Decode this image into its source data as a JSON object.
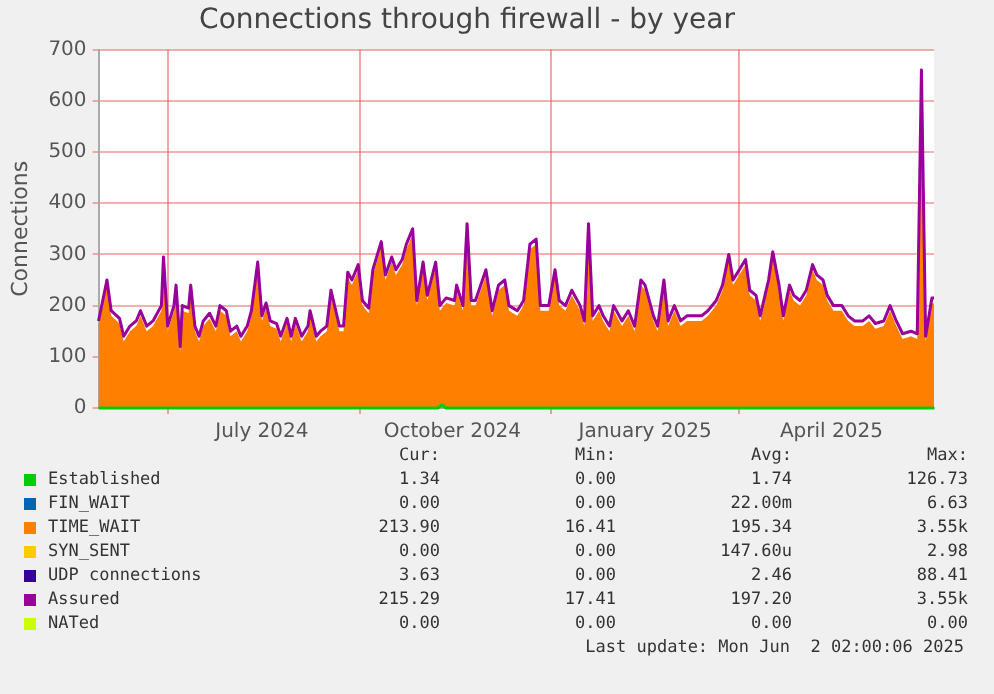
{
  "chart_data": {
    "type": "area",
    "title": "Connections through firewall - by year",
    "ylabel": "Connections",
    "x": [
      "2024-04-29",
      "2024-05-03",
      "2024-05-05",
      "2024-05-09",
      "2024-05-11",
      "2024-05-14",
      "2024-05-17",
      "2024-05-19",
      "2024-05-22",
      "2024-05-25",
      "2024-05-29",
      "2024-05-30",
      "2024-06-01",
      "2024-06-04",
      "2024-06-05",
      "2024-06-07",
      "2024-06-08",
      "2024-06-11",
      "2024-06-12",
      "2024-06-14",
      "2024-06-16",
      "2024-06-18",
      "2024-06-21",
      "2024-06-24",
      "2024-06-26",
      "2024-06-29",
      "2024-07-01",
      "2024-07-04",
      "2024-07-06",
      "2024-07-09",
      "2024-07-11",
      "2024-07-14",
      "2024-07-16",
      "2024-07-18",
      "2024-07-20",
      "2024-07-23",
      "2024-07-25",
      "2024-07-28",
      "2024-07-30",
      "2024-08-01",
      "2024-08-04",
      "2024-08-07",
      "2024-08-08",
      "2024-08-11",
      "2024-08-13",
      "2024-08-16",
      "2024-08-18",
      "2024-08-22",
      "2024-08-24",
      "2024-08-26",
      "2024-08-28",
      "2024-08-31",
      "2024-09-02",
      "2024-09-05",
      "2024-09-07",
      "2024-09-11",
      "2024-09-13",
      "2024-09-16",
      "2024-09-18",
      "2024-09-21",
      "2024-09-23",
      "2024-09-26",
      "2024-09-28",
      "2024-10-01",
      "2024-10-03",
      "2024-10-07",
      "2024-10-09",
      "2024-10-12",
      "2024-10-16",
      "2024-10-17",
      "2024-10-20",
      "2024-10-22",
      "2024-10-24",
      "2024-10-26",
      "2024-10-31",
      "2024-11-03",
      "2024-11-06",
      "2024-11-09",
      "2024-11-11",
      "2024-11-15",
      "2024-11-18",
      "2024-11-21",
      "2024-11-24",
      "2024-11-26",
      "2024-11-30",
      "2024-12-03",
      "2024-12-05",
      "2024-12-08",
      "2024-12-11",
      "2024-12-15",
      "2024-12-17",
      "2024-12-19",
      "2024-12-21",
      "2024-12-24",
      "2024-12-26",
      "2024-12-29",
      "2024-12-31",
      "2025-01-04",
      "2025-01-07",
      "2025-01-10",
      "2025-01-13",
      "2025-01-15",
      "2025-01-19",
      "2025-01-21",
      "2025-01-24",
      "2025-01-26",
      "2025-01-29",
      "2025-02-01",
      "2025-02-04",
      "2025-02-08",
      "2025-02-11",
      "2025-02-14",
      "2025-02-18",
      "2025-02-21",
      "2025-02-24",
      "2025-02-26",
      "2025-03-01",
      "2025-03-04",
      "2025-03-06",
      "2025-03-09",
      "2025-03-11",
      "2025-03-15",
      "2025-03-17",
      "2025-03-20",
      "2025-03-22",
      "2025-03-25",
      "2025-03-27",
      "2025-03-30",
      "2025-04-02",
      "2025-04-05",
      "2025-04-07",
      "2025-04-10",
      "2025-04-12",
      "2025-04-15",
      "2025-04-19",
      "2025-04-22",
      "2025-04-25",
      "2025-04-29",
      "2025-05-02",
      "2025-05-05",
      "2025-05-09",
      "2025-05-12",
      "2025-05-15",
      "2025-05-18",
      "2025-05-22",
      "2025-05-25",
      "2025-05-27",
      "2025-05-29",
      "2025-06-01",
      "2025-06-02"
    ],
    "series": [
      {
        "name": "Established",
        "type": "line",
        "color": "#00cc00",
        "x": [
          "2024-04-29",
          "2024-10-08",
          "2024-10-10",
          "2024-10-12",
          "2025-06-02"
        ],
        "values": [
          0,
          0,
          6,
          0,
          0
        ]
      },
      {
        "name": "FIN_WAIT",
        "type": "line",
        "color": "#0066b3",
        "values": [
          null,
          null,
          null,
          null,
          null,
          null,
          null,
          null,
          null,
          null,
          null,
          null,
          null,
          null,
          null,
          null,
          null,
          null,
          null,
          null,
          null,
          null,
          null,
          null,
          null,
          null,
          null,
          null,
          null,
          null,
          null,
          null,
          null,
          null,
          null,
          null,
          null,
          null,
          null,
          null,
          null,
          null,
          null,
          null,
          null,
          null,
          null,
          null,
          null,
          null,
          null,
          null,
          null,
          null,
          null,
          null,
          null,
          null,
          null,
          null,
          null,
          null,
          null,
          null,
          null,
          null,
          null,
          null,
          null,
          null,
          null,
          null,
          null,
          null,
          null,
          null,
          null,
          null,
          null,
          null,
          null,
          null,
          null,
          null,
          null,
          null,
          null,
          null,
          null,
          null,
          null,
          null,
          null,
          null,
          null,
          null,
          null,
          null,
          null,
          null,
          null,
          null,
          null,
          null,
          null,
          null,
          null,
          null,
          null,
          null,
          null,
          null,
          null,
          null,
          null,
          null,
          null,
          null,
          null,
          null,
          null,
          null,
          null,
          null,
          null,
          null,
          null,
          null,
          null,
          null,
          null,
          null,
          null,
          null,
          null,
          null,
          null,
          null,
          null,
          null,
          null,
          null,
          null,
          null,
          null,
          null,
          null,
          null,
          null,
          null
        ]
      },
      {
        "name": "TIME_WAIT",
        "color": "#ff8000",
        "values": [
          160,
          240,
          180,
          165,
          130,
          150,
          160,
          180,
          150,
          160,
          190,
          285,
          150,
          190,
          230,
          110,
          190,
          185,
          230,
          150,
          130,
          160,
          175,
          150,
          190,
          180,
          140,
          150,
          130,
          150,
          180,
          275,
          170,
          195,
          160,
          155,
          130,
          165,
          130,
          165,
          130,
          150,
          180,
          130,
          140,
          150,
          220,
          150,
          150,
          255,
          240,
          270,
          200,
          185,
          260,
          315,
          250,
          285,
          260,
          280,
          310,
          340,
          200,
          275,
          210,
          275,
          190,
          205,
          200,
          230,
          190,
          350,
          200,
          200,
          260,
          180,
          230,
          240,
          190,
          180,
          200,
          310,
          320,
          190,
          190,
          260,
          200,
          190,
          220,
          190,
          160,
          350,
          170,
          190,
          170,
          150,
          190,
          160,
          180,
          150,
          240,
          230,
          170,
          150,
          240,
          160,
          190,
          160,
          170,
          170,
          170,
          180,
          200,
          230,
          290,
          240,
          260,
          280,
          220,
          210,
          170,
          240,
          295,
          230,
          170,
          230,
          210,
          200,
          220,
          270,
          250,
          240,
          210,
          190,
          190,
          170,
          160,
          160,
          170,
          155,
          160,
          190,
          160,
          135,
          140,
          135,
          650,
          130,
          205,
          204
        ]
      },
      {
        "name": "SYN_SENT",
        "type": "line",
        "color": "#ffcc00",
        "values": [
          null,
          null,
          null,
          null,
          null,
          null,
          null,
          null,
          null,
          null,
          null,
          null,
          null,
          null,
          null,
          null,
          null,
          null,
          null,
          null,
          null,
          null,
          null,
          null,
          null,
          null,
          null,
          null,
          null,
          null,
          null,
          null,
          null,
          null,
          null,
          null,
          null,
          null,
          null,
          null,
          null,
          null,
          null,
          null,
          null,
          null,
          null,
          null,
          null,
          null,
          null,
          null,
          null,
          null,
          null,
          null,
          null,
          null,
          null,
          null,
          null,
          null,
          null,
          null,
          null,
          null,
          null,
          null,
          null,
          null,
          null,
          null,
          null,
          null,
          null,
          null,
          null,
          null,
          null,
          null,
          null,
          null,
          null,
          null,
          null,
          null,
          null,
          null,
          null,
          null,
          null,
          null,
          null,
          null,
          null,
          null,
          null,
          null,
          null,
          null,
          null,
          null,
          null,
          null,
          null,
          null,
          null,
          null,
          null,
          null,
          null,
          null,
          null,
          null,
          null,
          null,
          null,
          null,
          null,
          null,
          null,
          null,
          null,
          null,
          null,
          null,
          null,
          null,
          null,
          null,
          null,
          null,
          null,
          null,
          null,
          null,
          null,
          null,
          null,
          null,
          null,
          null,
          null,
          null,
          null,
          null,
          null,
          null,
          null,
          null
        ]
      },
      {
        "name": "UDP connections",
        "type": "line",
        "color": "#330099",
        "values": [
          null,
          null,
          null,
          null,
          null,
          null,
          null,
          null,
          null,
          null,
          null,
          null,
          null,
          null,
          null,
          null,
          null,
          null,
          null,
          null,
          null,
          null,
          null,
          null,
          null,
          null,
          null,
          null,
          null,
          null,
          null,
          null,
          null,
          null,
          null,
          null,
          null,
          null,
          null,
          null,
          null,
          null,
          null,
          null,
          null,
          null,
          null,
          null,
          null,
          null,
          null,
          null,
          null,
          null,
          null,
          null,
          null,
          null,
          null,
          null,
          null,
          null,
          null,
          null,
          null,
          null,
          null,
          null,
          null,
          null,
          null,
          null,
          null,
          null,
          null,
          null,
          null,
          null,
          null,
          null,
          null,
          null,
          null,
          null,
          null,
          null,
          null,
          null,
          null,
          null,
          null,
          null,
          null,
          null,
          null,
          null,
          null,
          null,
          null,
          null,
          null,
          null,
          null,
          null,
          null,
          null,
          null,
          null,
          null,
          null,
          null,
          null,
          null,
          null,
          null,
          null,
          null,
          null,
          null,
          null,
          null,
          null,
          null,
          null,
          null,
          null,
          null,
          null,
          null,
          null,
          null,
          null,
          null,
          null,
          null,
          null,
          null,
          null,
          null,
          null,
          null,
          null,
          null,
          null,
          null,
          null,
          null,
          null,
          null,
          null
        ]
      },
      {
        "name": "Assured",
        "type": "line",
        "color": "#990099",
        "values": [
          170,
          250,
          190,
          175,
          140,
          160,
          170,
          190,
          160,
          170,
          200,
          295,
          160,
          200,
          240,
          120,
          200,
          195,
          240,
          160,
          140,
          170,
          185,
          160,
          200,
          190,
          150,
          160,
          140,
          160,
          190,
          285,
          180,
          205,
          170,
          165,
          140,
          175,
          140,
          175,
          140,
          160,
          190,
          140,
          150,
          160,
          230,
          160,
          160,
          265,
          250,
          280,
          210,
          195,
          270,
          325,
          260,
          295,
          270,
          290,
          320,
          350,
          210,
          285,
          220,
          285,
          200,
          215,
          210,
          240,
          200,
          360,
          210,
          210,
          270,
          190,
          240,
          250,
          200,
          190,
          210,
          320,
          330,
          200,
          200,
          270,
          210,
          200,
          230,
          200,
          170,
          360,
          180,
          200,
          180,
          160,
          200,
          170,
          190,
          160,
          250,
          240,
          180,
          160,
          250,
          170,
          200,
          170,
          180,
          180,
          180,
          190,
          210,
          240,
          300,
          250,
          270,
          290,
          230,
          220,
          180,
          250,
          305,
          240,
          180,
          240,
          220,
          210,
          230,
          280,
          260,
          250,
          220,
          200,
          200,
          180,
          170,
          170,
          180,
          165,
          170,
          200,
          170,
          145,
          150,
          145,
          660,
          140,
          215,
          215
        ]
      },
      {
        "name": "NATed",
        "type": "line",
        "color": "#ccff00",
        "values": [
          null,
          null,
          null,
          null,
          null,
          null,
          null,
          null,
          null,
          null,
          null,
          null,
          null,
          null,
          null,
          null,
          null,
          null,
          null,
          null,
          null,
          null,
          null,
          null,
          null,
          null,
          null,
          null,
          null,
          null,
          null,
          null,
          null,
          null,
          null,
          null,
          null,
          null,
          null,
          null,
          null,
          null,
          null,
          null,
          null,
          null,
          null,
          null,
          null,
          null,
          null,
          null,
          null,
          null,
          null,
          null,
          null,
          null,
          null,
          null,
          null,
          null,
          null,
          null,
          null,
          null,
          null,
          null,
          null,
          null,
          null,
          null,
          null,
          null,
          null,
          null,
          null,
          null,
          null,
          null,
          null,
          null,
          null,
          null,
          null,
          null,
          null,
          null,
          null,
          null,
          null,
          null,
          null,
          null,
          null,
          null,
          null,
          null,
          null,
          null,
          null,
          null,
          null,
          null,
          null,
          null,
          null,
          null,
          null,
          null,
          null,
          null,
          null,
          null,
          null,
          null,
          null,
          null,
          null,
          null,
          null,
          null,
          null,
          null,
          null,
          null,
          null,
          null,
          null,
          null,
          null,
          null,
          null,
          null,
          null,
          null,
          null,
          null,
          null,
          null,
          null,
          null,
          null,
          null,
          null,
          null,
          null,
          null,
          null,
          null
        ]
      }
    ],
    "xlim": [
      "2024-04-29",
      "2025-06-02"
    ],
    "xticks": [
      {
        "value": "2024-06-01",
        "label": null
      },
      {
        "value": "2024-07-16",
        "label": "July 2024"
      },
      {
        "value": "2024-09-01",
        "label": null
      },
      {
        "value": "2024-10-15",
        "label": "October 2024"
      },
      {
        "value": "2024-12-01",
        "label": null
      },
      {
        "value": "2025-01-15",
        "label": "January 2025"
      },
      {
        "value": "2025-03-01",
        "label": null
      },
      {
        "value": "2025-04-14",
        "label": "April 2025"
      }
    ],
    "ylim": [
      0,
      700
    ],
    "yticks": [
      0,
      100,
      200,
      300,
      400,
      500,
      600,
      700
    ],
    "grid": true,
    "legend": "bottom",
    "annotations": [
      "Cur:",
      "Min:",
      "Avg:",
      "Max:",
      "1.34",
      "0.00",
      "1.74",
      "126.73",
      "0.00",
      "0.00",
      "22.00m",
      "6.63",
      "213.90",
      "16.41",
      "195.34",
      "3.55k",
      "0.00",
      "0.00",
      "147.60u",
      "2.98",
      "3.63",
      "0.00",
      "2.46",
      "88.41",
      "215.29",
      "17.41",
      "197.20",
      "3.55k",
      "0.00",
      "0.00",
      "0.00",
      "0.00",
      "Last update: Mon Jun  2 02:00:06 2025"
    ]
  }
}
